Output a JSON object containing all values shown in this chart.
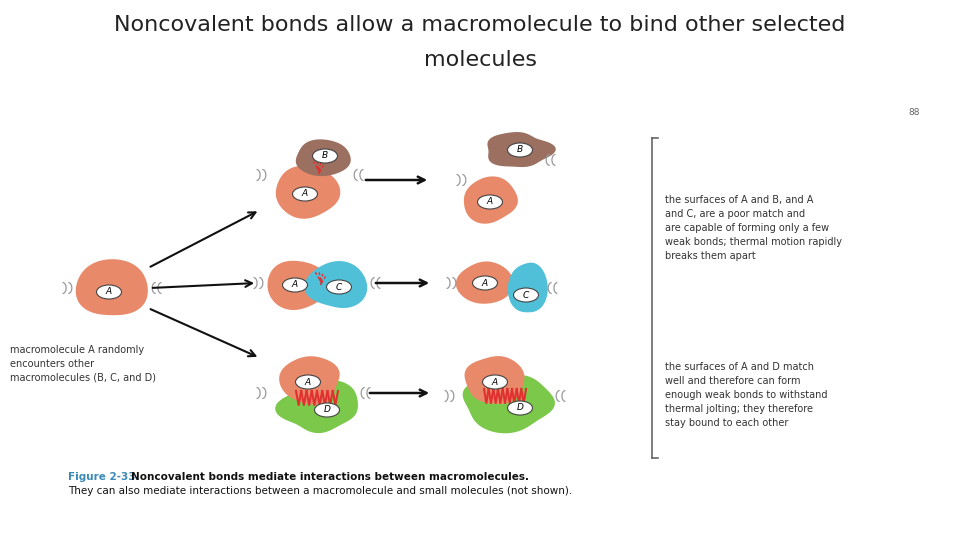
{
  "title_line1": "Noncovalent bonds allow a macromolecule to bind other selected",
  "title_line2": "molecules",
  "title_fontsize": 16,
  "background_color": "#ffffff",
  "fig_width": 9.6,
  "fig_height": 5.4,
  "page_number": "88",
  "caption_label": "Figure 2-33 ",
  "caption_bold_part": "Noncovalent bonds mediate interactions between macromolecules.",
  "caption_normal": " They can also mediate interactions between a macromolecule and small molecules (not shown).",
  "left_label": "macromolecule A randomly\nencounters other\nmacromolecules (B, C, and D)",
  "right_label_top": "the surfaces of A and B, and A\nand C, are a poor match and\nare capable of forming only a few\nweak bonds; thermal motion rapidly\nbreaks them apart",
  "right_label_bottom": "the surfaces of A and D match\nwell and therefore can form\nenough weak bonds to withstand\nthermal jolting; they therefore\nstay bound to each other",
  "color_A": "#e8896a",
  "color_B": "#9b7060",
  "color_C": "#50c0d8",
  "color_D": "#7cc84a",
  "color_red": "#e03030",
  "color_white_red": "#f0a0a0",
  "color_arrow": "#111111",
  "color_bracket": "#666666",
  "color_caption_label": "#3a8ab8",
  "color_title": "#222222",
  "color_text": "#333333"
}
